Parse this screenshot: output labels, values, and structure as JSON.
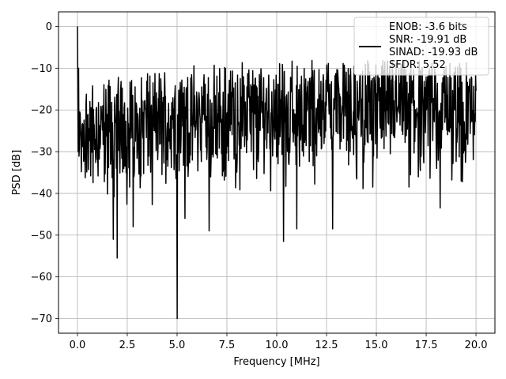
{
  "chart_data": {
    "type": "line",
    "title": "",
    "xlabel": "Frequency [MHz]",
    "ylabel": "PSD [dB]",
    "xlim": [
      -0.95,
      20.95
    ],
    "ylim": [
      -73.5,
      3.5
    ],
    "x_ticks": [
      0.0,
      2.5,
      5.0,
      7.5,
      10.0,
      12.5,
      15.0,
      17.5,
      20.0
    ],
    "x_tick_labels": [
      "0.0",
      "2.5",
      "5.0",
      "7.5",
      "10.0",
      "12.5",
      "15.0",
      "17.5",
      "20.0"
    ],
    "y_ticks": [
      0,
      -10,
      -20,
      -30,
      -40,
      -50,
      -60,
      -70
    ],
    "y_tick_labels": [
      "0",
      "−10",
      "−20",
      "−30",
      "−40",
      "−50",
      "−60",
      "−70"
    ],
    "grid": true,
    "legend_position": "top-right",
    "series": [
      {
        "color": "#000000",
        "x_start": 0.0,
        "x_end": 20.0,
        "points": 1024,
        "envelope": {
          "description_values_db": {
            "dc_peak": 0.0,
            "upper_low_freq": -14,
            "upper_high_freq": -8,
            "lower_typical": -38,
            "median_low_freq": -25,
            "median_high_freq": -19
          }
        },
        "notable_dips": [
          {
            "x": 1.8,
            "y": -51
          },
          {
            "x": 2.0,
            "y": -55.5
          },
          {
            "x": 2.8,
            "y": -48
          },
          {
            "x": 5.0,
            "y": -70
          },
          {
            "x": 5.4,
            "y": -46
          },
          {
            "x": 6.6,
            "y": -49
          },
          {
            "x": 10.35,
            "y": -51.5
          },
          {
            "x": 11.0,
            "y": -48.5
          },
          {
            "x": 12.8,
            "y": -48.5
          },
          {
            "x": 18.2,
            "y": -43.5
          }
        ]
      }
    ],
    "legend_entries": [
      "ENOB: -3.6 bits",
      "SNR: -19.91 dB",
      "SINAD: -19.93 dB",
      "SFDR: 5.52"
    ]
  }
}
